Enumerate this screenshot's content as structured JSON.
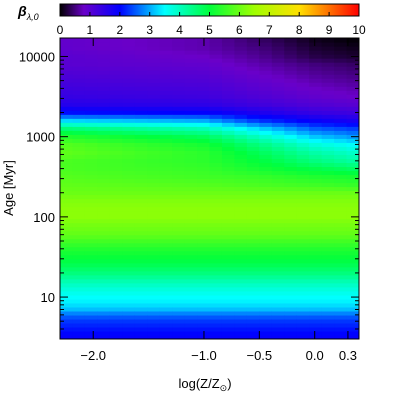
{
  "chart_data": {
    "type": "heatmap",
    "title": "",
    "xlabel": "log(Z/Z",
    "xlabel_sub": "⊙",
    "xlabel_close": ")",
    "ylabel": "Age [Myr]",
    "y_scale": "log",
    "xlim": [
      -2.3,
      0.4
    ],
    "ylim": [
      3,
      17000
    ],
    "x_ticks": [
      -2.0,
      -1.0,
      -0.5,
      0.0,
      0.3
    ],
    "x_tick_labels": [
      "−2.0",
      "−1.0",
      "−0.5",
      "0.0",
      "0.3"
    ],
    "y_ticks": [
      10,
      100,
      1000,
      10000
    ],
    "y_tick_labels": [
      "10",
      "100",
      "1000",
      "10000"
    ],
    "colorbar": {
      "label": "β",
      "label_sub": "λ,0",
      "min": 0,
      "max": 10,
      "ticks": [
        0,
        1,
        2,
        3,
        4,
        5,
        6,
        7,
        8,
        9,
        10
      ],
      "tick_labels": [
        "0",
        "1",
        "2",
        "3",
        "4",
        "5",
        "6",
        "7",
        "8",
        "9",
        "10"
      ],
      "placement": "top",
      "colormap_stops": [
        {
          "v": 0,
          "color": "#000000"
        },
        {
          "v": 0.8,
          "color": "#6a00c8"
        },
        {
          "v": 2.0,
          "color": "#0000ff"
        },
        {
          "v": 3.5,
          "color": "#00ffff"
        },
        {
          "v": 5.0,
          "color": "#00ff3c"
        },
        {
          "v": 6.5,
          "color": "#a0ff00"
        },
        {
          "v": 8.0,
          "color": "#ffe000"
        },
        {
          "v": 10,
          "color": "#ff0000"
        }
      ]
    },
    "ages_myr": [
      3,
      4,
      5,
      6,
      7,
      8.5,
      10,
      12,
      15,
      20,
      25,
      30,
      40,
      50,
      60,
      80,
      100,
      130,
      160,
      200,
      250,
      320,
      400,
      500,
      630,
      800,
      1000,
      1300,
      1600,
      2000,
      2500,
      3200,
      4000,
      5000,
      6300,
      8000,
      10000,
      13000,
      17000
    ],
    "series": [
      {
        "log_z": -2.3,
        "values": [
          1.9,
          2.1,
          2.3,
          2.6,
          3.1,
          3.4,
          3.5,
          3.7,
          4.0,
          4.5,
          4.8,
          5.0,
          5.3,
          5.6,
          5.9,
          6.1,
          6.3,
          6.3,
          6.2,
          6.0,
          5.9,
          5.8,
          5.7,
          5.7,
          5.9,
          5.8,
          5.4,
          4.5,
          3.3,
          2.1,
          1.6,
          1.4,
          1.3,
          1.2,
          1.1,
          1.0,
          1.0,
          0.9,
          0.9
        ]
      },
      {
        "log_z": -1.0,
        "values": [
          1.9,
          2.1,
          2.3,
          2.6,
          3.1,
          3.4,
          3.5,
          3.7,
          4.0,
          4.5,
          4.8,
          5.0,
          5.3,
          5.6,
          5.9,
          6.1,
          6.3,
          6.3,
          6.2,
          6.0,
          5.8,
          5.6,
          5.5,
          5.4,
          5.4,
          5.2,
          4.8,
          4.0,
          3.0,
          2.0,
          1.5,
          1.3,
          1.2,
          1.1,
          1.0,
          0.9,
          0.8,
          0.7,
          0.7
        ]
      },
      {
        "log_z": -0.5,
        "values": [
          1.9,
          2.1,
          2.3,
          2.6,
          3.1,
          3.4,
          3.5,
          3.7,
          4.0,
          4.5,
          4.8,
          5.0,
          5.3,
          5.6,
          5.9,
          6.1,
          6.3,
          6.3,
          6.2,
          6.0,
          5.7,
          5.5,
          5.2,
          5.0,
          4.8,
          4.5,
          4.0,
          3.2,
          2.3,
          1.7,
          1.3,
          1.1,
          1.0,
          0.9,
          0.8,
          0.7,
          0.6,
          0.5,
          0.4
        ]
      },
      {
        "log_z": 0.0,
        "values": [
          1.9,
          2.1,
          2.3,
          2.6,
          3.1,
          3.4,
          3.5,
          3.7,
          4.0,
          4.5,
          4.8,
          5.0,
          5.3,
          5.6,
          5.9,
          6.1,
          6.3,
          6.3,
          6.2,
          6.0,
          5.6,
          5.3,
          4.9,
          4.5,
          4.2,
          3.8,
          3.2,
          2.5,
          1.9,
          1.4,
          1.1,
          0.9,
          0.8,
          0.7,
          0.6,
          0.5,
          0.3,
          0.2,
          0.1
        ]
      },
      {
        "log_z": 0.4,
        "values": [
          1.9,
          2.1,
          2.3,
          2.6,
          3.1,
          3.4,
          3.5,
          3.7,
          4.0,
          4.5,
          4.8,
          5.0,
          5.3,
          5.6,
          5.9,
          6.1,
          6.3,
          6.3,
          6.2,
          6.0,
          5.5,
          5.2,
          4.7,
          4.2,
          3.9,
          3.5,
          2.9,
          2.3,
          1.7,
          1.3,
          1.0,
          0.8,
          0.7,
          0.6,
          0.5,
          0.4,
          0.2,
          0.1,
          0.0
        ]
      }
    ]
  }
}
